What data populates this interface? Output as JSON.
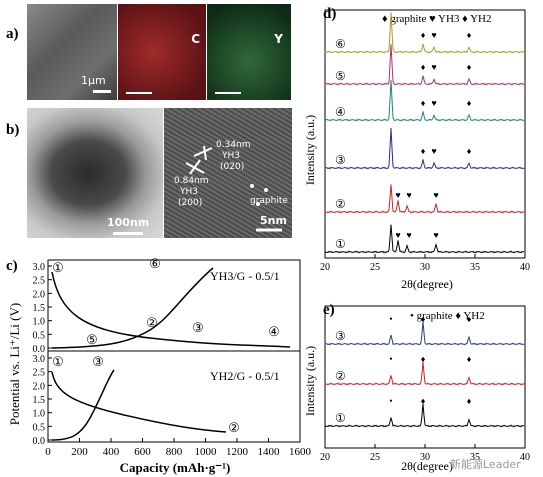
{
  "panels": {
    "a": {
      "label": "a)",
      "scalebar": "1μm",
      "maps": [
        {
          "name": "C",
          "color": "#8b1e22"
        },
        {
          "name": "Y",
          "color": "#1a4d2a"
        }
      ]
    },
    "b": {
      "label": "b)",
      "scalebar_left": "100nm",
      "scalebar_right": "5nm",
      "annotations": [
        "0.34nm",
        "YH3",
        "(020)",
        "0.84nm",
        "YH3",
        "(200)",
        "graphite"
      ]
    },
    "c": {
      "label": "c)",
      "ylabel": "Potential vs. Li⁺/Li (V)",
      "xlabel": "Capacity (mAh·g⁻¹)",
      "xticks": [
        "0",
        "200",
        "400",
        "600",
        "800",
        "1000",
        "1200",
        "1400",
        "1600"
      ],
      "yticks_top": [
        "0.0",
        "0.5",
        "1.0",
        "1.5",
        "2.0",
        "2.5",
        "3.0"
      ],
      "yticks_bottom": [
        "0.0",
        "0.5",
        "1.0",
        "1.5",
        "2.0",
        "2.5",
        "3.0"
      ],
      "top_title": "YH3/G - 0.5/1",
      "bottom_title": "YH2/G - 0.5/1",
      "top_markers": [
        "①",
        "②",
        "③",
        "④",
        "⑤",
        "⑥"
      ],
      "bottom_markers": [
        "①",
        "②",
        "③"
      ]
    },
    "d": {
      "label": "d)",
      "legend": "♦ graphite ♥ YH3 ♦ YH2",
      "ylabel": "Intensity (a.u.)",
      "xlabel": "2θ(degree)",
      "xticks": [
        "20",
        "25",
        "30",
        "35",
        "40"
      ],
      "traces": [
        {
          "label": "①",
          "color": "#000000"
        },
        {
          "label": "②",
          "color": "#d42020"
        },
        {
          "label": "③",
          "color": "#2a2a9a"
        },
        {
          "label": "④",
          "color": "#1a8a7a"
        },
        {
          "label": "⑤",
          "color": "#b03070"
        },
        {
          "label": "⑥",
          "color": "#a8a02a"
        }
      ]
    },
    "e": {
      "label": "e)",
      "legend": "• graphite ♦ YH2",
      "ylabel": "Intensity (a.u.)",
      "xlabel": "2θ(degree)",
      "xticks": [
        "20",
        "25",
        "30",
        "35",
        "40"
      ],
      "traces": [
        {
          "label": "①",
          "color": "#000000"
        },
        {
          "label": "②",
          "color": "#d42020"
        },
        {
          "label": "③",
          "color": "#2a3a9a"
        }
      ]
    }
  },
  "watermark": "新能源Leader"
}
